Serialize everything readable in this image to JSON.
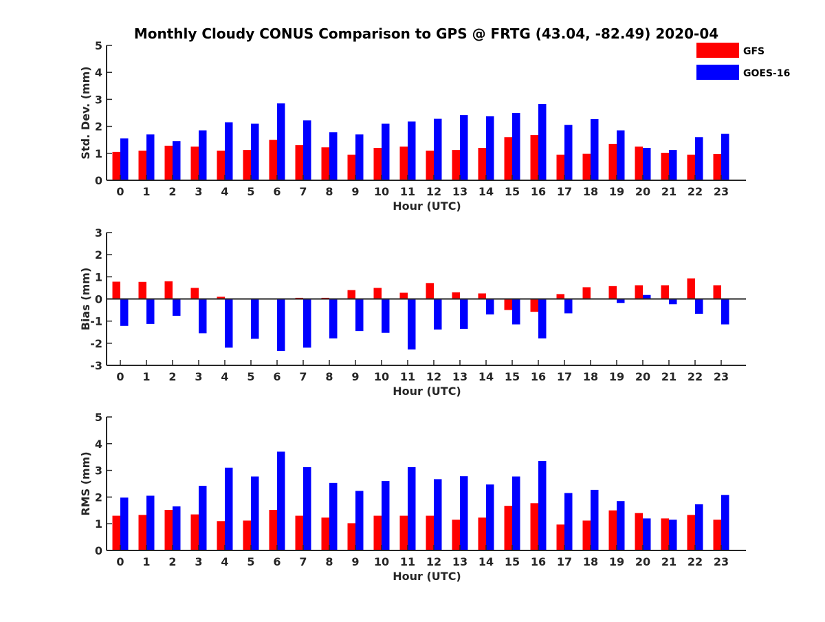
{
  "colors": {
    "gfs": "#ff0000",
    "goes": "#0000ff",
    "axis": "#262626",
    "background": "#ffffff"
  },
  "chart_data": [
    {
      "type": "bar",
      "title": "Monthly Cloudy CONUS Comparison to GPS @ FRTG (43.04, -82.49) 2020-04",
      "xlabel": "Hour (UTC)",
      "ylabel": "Std. Dev. (mm)",
      "ylim": [
        0,
        5
      ],
      "yticks": [
        "0",
        "1",
        "2",
        "3",
        "4",
        "5"
      ],
      "categories": [
        "0",
        "1",
        "2",
        "3",
        "4",
        "5",
        "6",
        "7",
        "8",
        "9",
        "10",
        "11",
        "12",
        "13",
        "14",
        "15",
        "16",
        "17",
        "18",
        "19",
        "20",
        "21",
        "22",
        "23"
      ],
      "legend": {
        "position": "top-right",
        "entries": [
          "GFS",
          "GOES-16"
        ]
      },
      "series": [
        {
          "name": "GFS",
          "values": [
            1.05,
            1.1,
            1.28,
            1.25,
            1.1,
            1.12,
            1.5,
            1.3,
            1.22,
            0.95,
            1.2,
            1.25,
            1.1,
            1.12,
            1.2,
            1.6,
            1.68,
            0.95,
            0.98,
            1.35,
            1.25,
            1.02,
            0.95,
            0.97
          ]
        },
        {
          "name": "GOES-16",
          "values": [
            1.55,
            1.7,
            1.45,
            1.85,
            2.15,
            2.1,
            2.85,
            2.22,
            1.78,
            1.7,
            2.1,
            2.18,
            2.28,
            2.42,
            2.37,
            2.5,
            2.83,
            2.05,
            2.27,
            1.85,
            1.2,
            1.12,
            1.6,
            1.72
          ]
        }
      ]
    },
    {
      "type": "bar",
      "title": "",
      "xlabel": "Hour (UTC)",
      "ylabel": "Bias (mm)",
      "ylim": [
        -3,
        3
      ],
      "yticks": [
        "-3",
        "-2",
        "-1",
        "0",
        "1",
        "2",
        "3"
      ],
      "categories": [
        "0",
        "1",
        "2",
        "3",
        "4",
        "5",
        "6",
        "7",
        "8",
        "9",
        "10",
        "11",
        "12",
        "13",
        "14",
        "15",
        "16",
        "17",
        "18",
        "19",
        "20",
        "21",
        "22",
        "23"
      ],
      "series": [
        {
          "name": "GFS",
          "values": [
            0.78,
            0.77,
            0.8,
            0.5,
            0.1,
            0.03,
            0.0,
            0.05,
            0.05,
            0.4,
            0.5,
            0.28,
            0.72,
            0.3,
            0.25,
            -0.5,
            -0.58,
            0.22,
            0.53,
            0.58,
            0.62,
            0.62,
            0.93,
            0.62
          ]
        },
        {
          "name": "GOES-16",
          "values": [
            -1.22,
            -1.13,
            -0.76,
            -1.55,
            -2.2,
            -1.8,
            -2.35,
            -2.2,
            -1.78,
            -1.45,
            -1.53,
            -2.28,
            -1.38,
            -1.35,
            -0.7,
            -1.15,
            -1.78,
            -0.65,
            0.0,
            -0.18,
            0.18,
            -0.24,
            -0.67,
            -1.15
          ]
        }
      ]
    },
    {
      "type": "bar",
      "title": "",
      "xlabel": "Hour (UTC)",
      "ylabel": "RMS (mm)",
      "ylim": [
        0,
        5
      ],
      "yticks": [
        "0",
        "1",
        "2",
        "3",
        "4",
        "5"
      ],
      "categories": [
        "0",
        "1",
        "2",
        "3",
        "4",
        "5",
        "6",
        "7",
        "8",
        "9",
        "10",
        "11",
        "12",
        "13",
        "14",
        "15",
        "16",
        "17",
        "18",
        "19",
        "20",
        "21",
        "22",
        "23"
      ],
      "series": [
        {
          "name": "GFS",
          "values": [
            1.3,
            1.33,
            1.52,
            1.35,
            1.1,
            1.12,
            1.52,
            1.3,
            1.23,
            1.02,
            1.3,
            1.3,
            1.3,
            1.15,
            1.23,
            1.67,
            1.77,
            0.97,
            1.12,
            1.5,
            1.4,
            1.2,
            1.33,
            1.15
          ]
        },
        {
          "name": "GOES-16",
          "values": [
            1.98,
            2.05,
            1.65,
            2.42,
            3.1,
            2.77,
            3.7,
            3.12,
            2.53,
            2.23,
            2.6,
            3.12,
            2.67,
            2.78,
            2.47,
            2.77,
            3.35,
            2.15,
            2.27,
            1.85,
            1.2,
            1.15,
            1.73,
            2.08
          ]
        }
      ]
    }
  ]
}
